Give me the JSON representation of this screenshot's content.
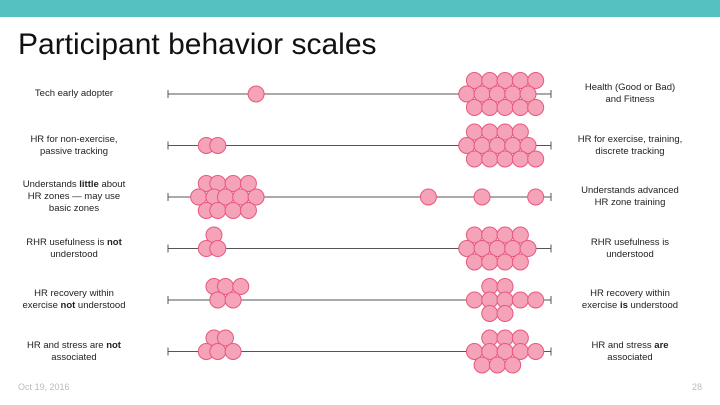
{
  "slide": {
    "title": "Participant behavior scales",
    "date": "Oct 19, 2016",
    "page_number": "28"
  },
  "colors": {
    "top_bar": "#55c1c1",
    "dot_fill": "#f5a3b8",
    "dot_stroke": "#e8577c",
    "axis": "#555555"
  },
  "scales": [
    {
      "left_parts": [
        {
          "t": "Tech early adopter",
          "b": false
        }
      ],
      "right_parts": [
        {
          "t": "Health (Good or Bad)\nand Fitness",
          "b": false
        }
      ],
      "left_dots": [
        [
          0.23,
          0
        ]
      ],
      "right_dots": [
        [
          0.8,
          -1
        ],
        [
          0.84,
          -1
        ],
        [
          0.88,
          -1
        ],
        [
          0.92,
          -1
        ],
        [
          0.96,
          -1
        ],
        [
          0.78,
          0
        ],
        [
          0.82,
          0
        ],
        [
          0.86,
          0
        ],
        [
          0.9,
          0
        ],
        [
          0.94,
          0
        ],
        [
          0.8,
          1
        ],
        [
          0.84,
          1
        ],
        [
          0.88,
          1
        ],
        [
          0.92,
          1
        ],
        [
          0.96,
          1
        ]
      ]
    },
    {
      "left_parts": [
        {
          "t": "HR for non-exercise,\npassive tracking",
          "b": false
        }
      ],
      "right_parts": [
        {
          "t": "HR for exercise, training,\ndiscrete tracking",
          "b": false
        }
      ],
      "left_dots": [
        [
          0.1,
          0
        ],
        [
          0.13,
          0
        ]
      ],
      "right_dots": [
        [
          0.8,
          -1
        ],
        [
          0.84,
          -1
        ],
        [
          0.88,
          -1
        ],
        [
          0.92,
          -1
        ],
        [
          0.78,
          0
        ],
        [
          0.82,
          0
        ],
        [
          0.86,
          0
        ],
        [
          0.9,
          0
        ],
        [
          0.94,
          0
        ],
        [
          0.8,
          1
        ],
        [
          0.84,
          1
        ],
        [
          0.88,
          1
        ],
        [
          0.92,
          1
        ],
        [
          0.96,
          1
        ]
      ]
    },
    {
      "left_parts": [
        {
          "t": "Understands ",
          "b": false
        },
        {
          "t": "little",
          "b": true
        },
        {
          "t": " about\nHR zones — may use\nbasic zones",
          "b": false
        }
      ],
      "right_parts": [
        {
          "t": "Understands advanced\nHR zone training",
          "b": false
        }
      ],
      "left_dots": [
        [
          0.1,
          -1
        ],
        [
          0.13,
          -1
        ],
        [
          0.17,
          -1
        ],
        [
          0.21,
          -1
        ],
        [
          0.08,
          0
        ],
        [
          0.12,
          0
        ],
        [
          0.15,
          0
        ],
        [
          0.19,
          0
        ],
        [
          0.23,
          0
        ],
        [
          0.1,
          1
        ],
        [
          0.13,
          1
        ],
        [
          0.17,
          1
        ],
        [
          0.21,
          1
        ],
        [
          0.68,
          0
        ],
        [
          0.82,
          0
        ],
        [
          0.96,
          0
        ]
      ],
      "right_dots": []
    },
    {
      "left_parts": [
        {
          "t": "RHR usefulness is ",
          "b": false
        },
        {
          "t": "not",
          "b": true
        },
        {
          "t": "\nunderstood",
          "b": false
        }
      ],
      "right_parts": [
        {
          "t": "RHR usefulness is\nunderstood",
          "b": false
        }
      ],
      "left_dots": [
        [
          0.12,
          -1
        ],
        [
          0.1,
          0
        ],
        [
          0.13,
          0
        ]
      ],
      "right_dots": [
        [
          0.8,
          -1
        ],
        [
          0.84,
          -1
        ],
        [
          0.88,
          -1
        ],
        [
          0.92,
          -1
        ],
        [
          0.78,
          0
        ],
        [
          0.82,
          0
        ],
        [
          0.86,
          0
        ],
        [
          0.9,
          0
        ],
        [
          0.94,
          0
        ],
        [
          0.8,
          1
        ],
        [
          0.84,
          1
        ],
        [
          0.88,
          1
        ],
        [
          0.92,
          1
        ]
      ]
    },
    {
      "left_parts": [
        {
          "t": "HR recovery within\nexercise ",
          "b": false
        },
        {
          "t": "not",
          "b": true
        },
        {
          "t": " understood",
          "b": false
        }
      ],
      "right_parts": [
        {
          "t": "HR recovery within\nexercise ",
          "b": false
        },
        {
          "t": "is",
          "b": true
        },
        {
          "t": " understood",
          "b": false
        }
      ],
      "left_dots": [
        [
          0.12,
          -1
        ],
        [
          0.15,
          -1
        ],
        [
          0.19,
          -1
        ],
        [
          0.13,
          0
        ],
        [
          0.17,
          0
        ]
      ],
      "right_dots": [
        [
          0.84,
          -1
        ],
        [
          0.88,
          -1
        ],
        [
          0.8,
          0
        ],
        [
          0.84,
          0
        ],
        [
          0.88,
          0
        ],
        [
          0.92,
          0
        ],
        [
          0.96,
          0
        ],
        [
          0.84,
          1
        ],
        [
          0.88,
          1
        ]
      ]
    },
    {
      "left_parts": [
        {
          "t": "HR and stress are ",
          "b": false
        },
        {
          "t": "not",
          "b": true
        },
        {
          "t": "\nassociated",
          "b": false
        }
      ],
      "right_parts": [
        {
          "t": "HR and stress ",
          "b": false
        },
        {
          "t": "are",
          "b": true
        },
        {
          "t": "\nassociated",
          "b": false
        }
      ],
      "left_dots": [
        [
          0.12,
          -1
        ],
        [
          0.15,
          -1
        ],
        [
          0.1,
          0
        ],
        [
          0.13,
          0
        ],
        [
          0.17,
          0
        ]
      ],
      "right_dots": [
        [
          0.84,
          -1
        ],
        [
          0.88,
          -1
        ],
        [
          0.92,
          -1
        ],
        [
          0.8,
          0
        ],
        [
          0.84,
          0
        ],
        [
          0.88,
          0
        ],
        [
          0.92,
          0
        ],
        [
          0.96,
          0
        ],
        [
          0.82,
          1
        ],
        [
          0.86,
          1
        ],
        [
          0.9,
          1
        ]
      ]
    }
  ]
}
